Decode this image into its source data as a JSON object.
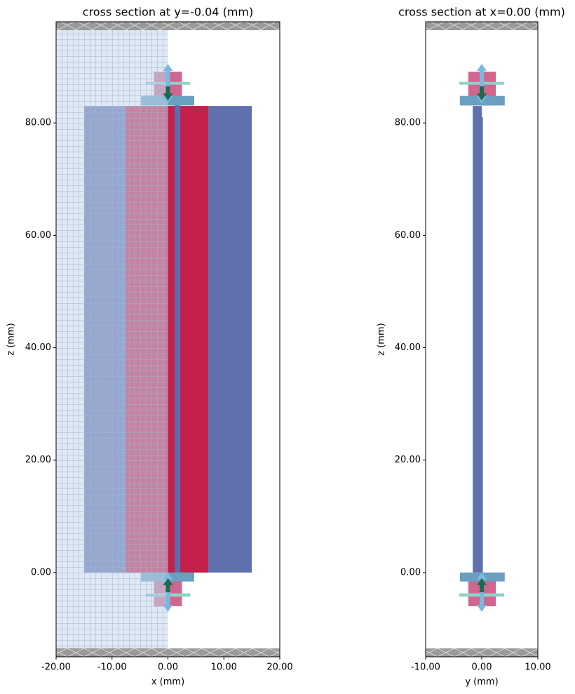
{
  "chart_data": [
    {
      "type": "structure",
      "title": "cross section at y=-0.04 (mm)",
      "xlabel": "x (mm)",
      "ylabel": "z (mm)",
      "xlim": [
        -20,
        20
      ],
      "ylim": [
        -15,
        98
      ],
      "xticks": [
        {
          "value": -20,
          "label": "-20.00"
        },
        {
          "value": -10,
          "label": "-10.00"
        },
        {
          "value": 0,
          "label": "0.00"
        },
        {
          "value": 10,
          "label": "10.00"
        },
        {
          "value": 20,
          "label": "20.00"
        }
      ],
      "yticks": [
        {
          "value": 0,
          "label": "0.00"
        },
        {
          "value": 20,
          "label": "20.00"
        },
        {
          "value": 40,
          "label": "40.00"
        },
        {
          "value": 60,
          "label": "60.00"
        },
        {
          "value": 80,
          "label": "80.00"
        }
      ],
      "shapes": [
        {
          "x": [
            -15,
            15
          ],
          "y": [
            0,
            83
          ],
          "color": "#6070ad"
        },
        {
          "x": [
            -7.5,
            7.2
          ],
          "y": [
            0,
            83
          ],
          "color": "#c5204b"
        },
        {
          "x": [
            1.2,
            2.2
          ],
          "y": [
            -1.5,
            84.5
          ],
          "color": "#5a6eab"
        },
        {
          "x": [
            -2.5,
            2.5
          ],
          "y": [
            83.1,
            89.1
          ],
          "color": "#d0668f"
        },
        {
          "x": [
            -4.8,
            4.7
          ],
          "y": [
            83.1,
            84.8
          ],
          "color": "#6a9fc0"
        },
        {
          "x": [
            -4,
            4
          ],
          "y": [
            86.8,
            87.3
          ],
          "color": "#8fd3c8"
        },
        {
          "x": [
            -2.5,
            2.5
          ],
          "y": [
            -6,
            -0.4
          ],
          "color": "#d0668f"
        },
        {
          "x": [
            -4.8,
            4.7
          ],
          "y": [
            -1.6,
            0
          ],
          "color": "#6a9fc0"
        },
        {
          "x": [
            -4,
            4
          ],
          "y": [
            -4.3,
            -3.7
          ],
          "color": "#8fd3c8"
        },
        {
          "x": [
            -20,
            0
          ],
          "y": [
            -15,
            98
          ],
          "color": "#c5d6ea",
          "opacity": 0.55,
          "hatch": "grid"
        },
        {
          "x": [
            -20,
            20
          ],
          "y": [
            96.5,
            98
          ],
          "color": "#9a9a9a",
          "hatch": "cross"
        },
        {
          "x": [
            -20,
            20
          ],
          "y": [
            -15,
            -13.5
          ],
          "color": "#9a9a9a",
          "hatch": "cross"
        }
      ],
      "arrows": [
        {
          "x": 0,
          "y": [
            90.5,
            83.5
          ],
          "color": "#7ab8e0",
          "double": true
        },
        {
          "x": 0,
          "y": [
            86.5,
            84
          ],
          "color": "#1a6b50"
        },
        {
          "x": 0,
          "y": [
            -7,
            0
          ],
          "color": "#7ab8e0",
          "double": true
        },
        {
          "x": 0,
          "y": [
            -3.5,
            -1
          ],
          "color": "#1a6b50"
        }
      ]
    },
    {
      "type": "structure",
      "title": "cross section at x=0.00 (mm)",
      "xlabel": "y (mm)",
      "ylabel": "z (mm)",
      "xlim": [
        -10,
        10
      ],
      "ylim": [
        -15,
        98
      ],
      "xticks": [
        {
          "value": -10,
          "label": "-10.00"
        },
        {
          "value": 0,
          "label": "0.00"
        },
        {
          "value": 10,
          "label": "10.00"
        }
      ],
      "yticks": [
        {
          "value": 0,
          "label": "0.00"
        },
        {
          "value": 20,
          "label": "20.00"
        },
        {
          "value": 40,
          "label": "40.00"
        },
        {
          "value": 60,
          "label": "60.00"
        },
        {
          "value": 80,
          "label": "80.00"
        }
      ],
      "shapes": [
        {
          "x": [
            -1.6,
            0
          ],
          "y": [
            0,
            83
          ],
          "color": "#6070ad"
        },
        {
          "x": [
            0,
            0.2
          ],
          "y": [
            -2,
            81
          ],
          "color": "#5a6eab"
        },
        {
          "x": [
            -2.4,
            2.5
          ],
          "y": [
            83.1,
            89.1
          ],
          "color": "#d0668f"
        },
        {
          "x": [
            -3.9,
            4.1
          ],
          "y": [
            83.1,
            84.8
          ],
          "color": "#6a9fc0"
        },
        {
          "x": [
            -4,
            4
          ],
          "y": [
            86.8,
            87.3
          ],
          "color": "#8fd3c8"
        },
        {
          "x": [
            -2.4,
            2.5
          ],
          "y": [
            -6,
            -0.4
          ],
          "color": "#d0668f"
        },
        {
          "x": [
            -3.9,
            4.1
          ],
          "y": [
            -1.6,
            0
          ],
          "color": "#6a9fc0"
        },
        {
          "x": [
            -4,
            4
          ],
          "y": [
            -4.3,
            -3.7
          ],
          "color": "#8fd3c8"
        },
        {
          "x": [
            -10,
            10
          ],
          "y": [
            96.5,
            98
          ],
          "color": "#9a9a9a",
          "hatch": "cross"
        },
        {
          "x": [
            -10,
            10
          ],
          "y": [
            -15,
            -13.5
          ],
          "color": "#9a9a9a",
          "hatch": "cross"
        }
      ],
      "arrows": [
        {
          "x": 0,
          "y": [
            90.5,
            83.5
          ],
          "color": "#7ab8e0",
          "double": true
        },
        {
          "x": 0,
          "y": [
            86.5,
            84
          ],
          "color": "#1a6b50"
        },
        {
          "x": 0,
          "y": [
            -7,
            0
          ],
          "color": "#7ab8e0",
          "double": true
        },
        {
          "x": 0,
          "y": [
            -3.5,
            -1
          ],
          "color": "#1a6b50"
        }
      ]
    }
  ]
}
